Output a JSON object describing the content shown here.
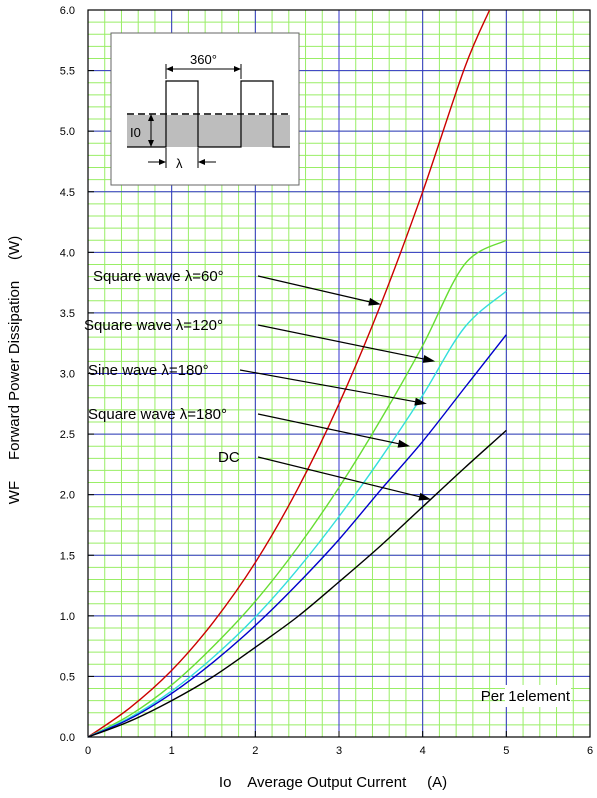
{
  "chart_data": {
    "type": "line",
    "xlabel": "Io    Average Output Current     (A)",
    "ylabel": "WF     Forward Power Dissipation     (W)",
    "xlim": [
      0,
      6
    ],
    "ylim": [
      0,
      6
    ],
    "x_ticks": [
      "0",
      "1",
      "2",
      "3",
      "4",
      "5",
      "6"
    ],
    "y_ticks": [
      "0.0",
      "0.5",
      "1.0",
      "1.5",
      "2.0",
      "2.5",
      "3.0",
      "3.5",
      "4.0",
      "4.5",
      "5.0",
      "5.5",
      "6.0"
    ],
    "grid": true,
    "series": [
      {
        "name": "Square wave λ=60°",
        "color": "#cc0000",
        "points": [
          [
            0,
            0
          ],
          [
            0.5,
            0.24
          ],
          [
            1,
            0.55
          ],
          [
            1.5,
            0.95
          ],
          [
            2,
            1.44
          ],
          [
            2.5,
            2.04
          ],
          [
            3,
            2.75
          ],
          [
            3.5,
            3.57
          ],
          [
            4,
            4.5
          ],
          [
            4.5,
            5.52
          ],
          [
            4.8,
            6.0
          ]
        ]
      },
      {
        "name": "Square wave λ=120°",
        "color": "#66dd33",
        "points": [
          [
            0,
            0
          ],
          [
            0.5,
            0.18
          ],
          [
            1,
            0.43
          ],
          [
            1.5,
            0.75
          ],
          [
            2,
            1.12
          ],
          [
            2.5,
            1.56
          ],
          [
            3,
            2.06
          ],
          [
            3.5,
            2.62
          ],
          [
            4,
            3.23
          ],
          [
            4.5,
            3.9
          ],
          [
            5,
            4.1
          ]
        ]
      },
      {
        "name": "Sine wave λ=180°",
        "color": "#33dddd",
        "points": [
          [
            0,
            0
          ],
          [
            0.5,
            0.16
          ],
          [
            1,
            0.38
          ],
          [
            1.5,
            0.66
          ],
          [
            2,
            0.99
          ],
          [
            2.5,
            1.38
          ],
          [
            3,
            1.82
          ],
          [
            3.5,
            2.3
          ],
          [
            4,
            2.82
          ],
          [
            4.5,
            3.38
          ],
          [
            5,
            3.68
          ]
        ]
      },
      {
        "name": "Square wave λ=180°",
        "color": "#0000cc",
        "points": [
          [
            0,
            0
          ],
          [
            0.5,
            0.15
          ],
          [
            1,
            0.36
          ],
          [
            1.5,
            0.62
          ],
          [
            2,
            0.92
          ],
          [
            2.5,
            1.26
          ],
          [
            3,
            1.63
          ],
          [
            3.5,
            2.04
          ],
          [
            4,
            2.44
          ],
          [
            4.5,
            2.88
          ],
          [
            5,
            3.32
          ]
        ]
      },
      {
        "name": "DC",
        "color": "#000000",
        "points": [
          [
            0,
            0
          ],
          [
            0.5,
            0.13
          ],
          [
            1,
            0.3
          ],
          [
            1.5,
            0.5
          ],
          [
            2,
            0.74
          ],
          [
            2.5,
            0.99
          ],
          [
            3,
            1.28
          ],
          [
            3.5,
            1.58
          ],
          [
            4,
            1.9
          ],
          [
            4.5,
            2.22
          ],
          [
            5,
            2.53
          ]
        ]
      }
    ],
    "annotations": [
      {
        "text": "Square wave λ=60°",
        "arrow_to": [
          3.5,
          3.57
        ]
      },
      {
        "text": "Square wave λ=120°",
        "arrow_to": [
          4.15,
          3.1
        ]
      },
      {
        "text": "Sine wave λ=180°",
        "arrow_to": [
          4.05,
          2.75
        ]
      },
      {
        "text": "Square wave λ=180°",
        "arrow_to": [
          3.85,
          2.4
        ]
      },
      {
        "text": "DC",
        "arrow_to": [
          4.1,
          1.96
        ]
      }
    ],
    "note": "Per 1element",
    "inset": {
      "angle_label": "360°",
      "current_label": "I0",
      "lambda_label": "λ"
    },
    "grid_colors": {
      "major": "#3333cc",
      "minor": "#99ee66"
    }
  }
}
